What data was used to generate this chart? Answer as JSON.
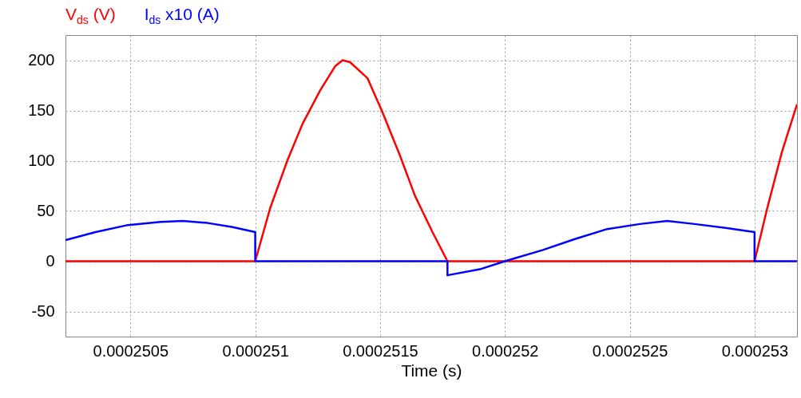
{
  "chart_data": {
    "type": "line",
    "xlabel": "Time (s)",
    "xlim": [
      0.00025024,
      0.00025317
    ],
    "ylim": [
      -75,
      225
    ],
    "xticks": [
      0.0002505,
      0.000251,
      0.0002515,
      0.000252,
      0.0002525,
      0.000253
    ],
    "yticks": [
      -50,
      0,
      50,
      100,
      150,
      200
    ],
    "grid": true,
    "line_style": "solid",
    "marker": "none",
    "series": [
      {
        "name": "V$_{ds}$ (V)",
        "color": "#ff0000",
        "x": [
          0.00025024,
          0.000251,
          0.00025106,
          0.00025113,
          0.00025119,
          0.00025126,
          0.00025132,
          0.00025135,
          0.00025138,
          0.00025145,
          0.00025151,
          0.00025158,
          0.00025164,
          0.00025171,
          0.00025177,
          0.000253,
          0.00025305,
          0.00025311,
          0.00025317
        ],
        "values": [
          0,
          0,
          53,
          101,
          137,
          170,
          194,
          200,
          198,
          182,
          148,
          105,
          65,
          29,
          0,
          0,
          52,
          109,
          156
        ]
      },
      {
        "name": "I$_{ds}$ x10 (A)",
        "color": "#0000ff",
        "x": [
          0.00025024,
          0.00025036,
          0.00025049,
          0.00025062,
          0.00025071,
          0.00025081,
          0.00025091,
          0.000251,
          0.000251,
          0.00025177,
          0.00025177,
          0.0002519,
          0.000252,
          0.00025215,
          0.00025228,
          0.00025241,
          0.00025254,
          0.00025265,
          0.00025276,
          0.00025289,
          0.000253,
          0.000253,
          0.00025317
        ],
        "values": [
          21,
          29,
          36,
          39,
          40,
          38,
          34,
          29,
          0,
          0,
          -14,
          -8,
          0,
          11,
          22,
          32,
          37,
          40,
          37,
          33,
          29,
          0,
          0
        ]
      }
    ]
  }
}
